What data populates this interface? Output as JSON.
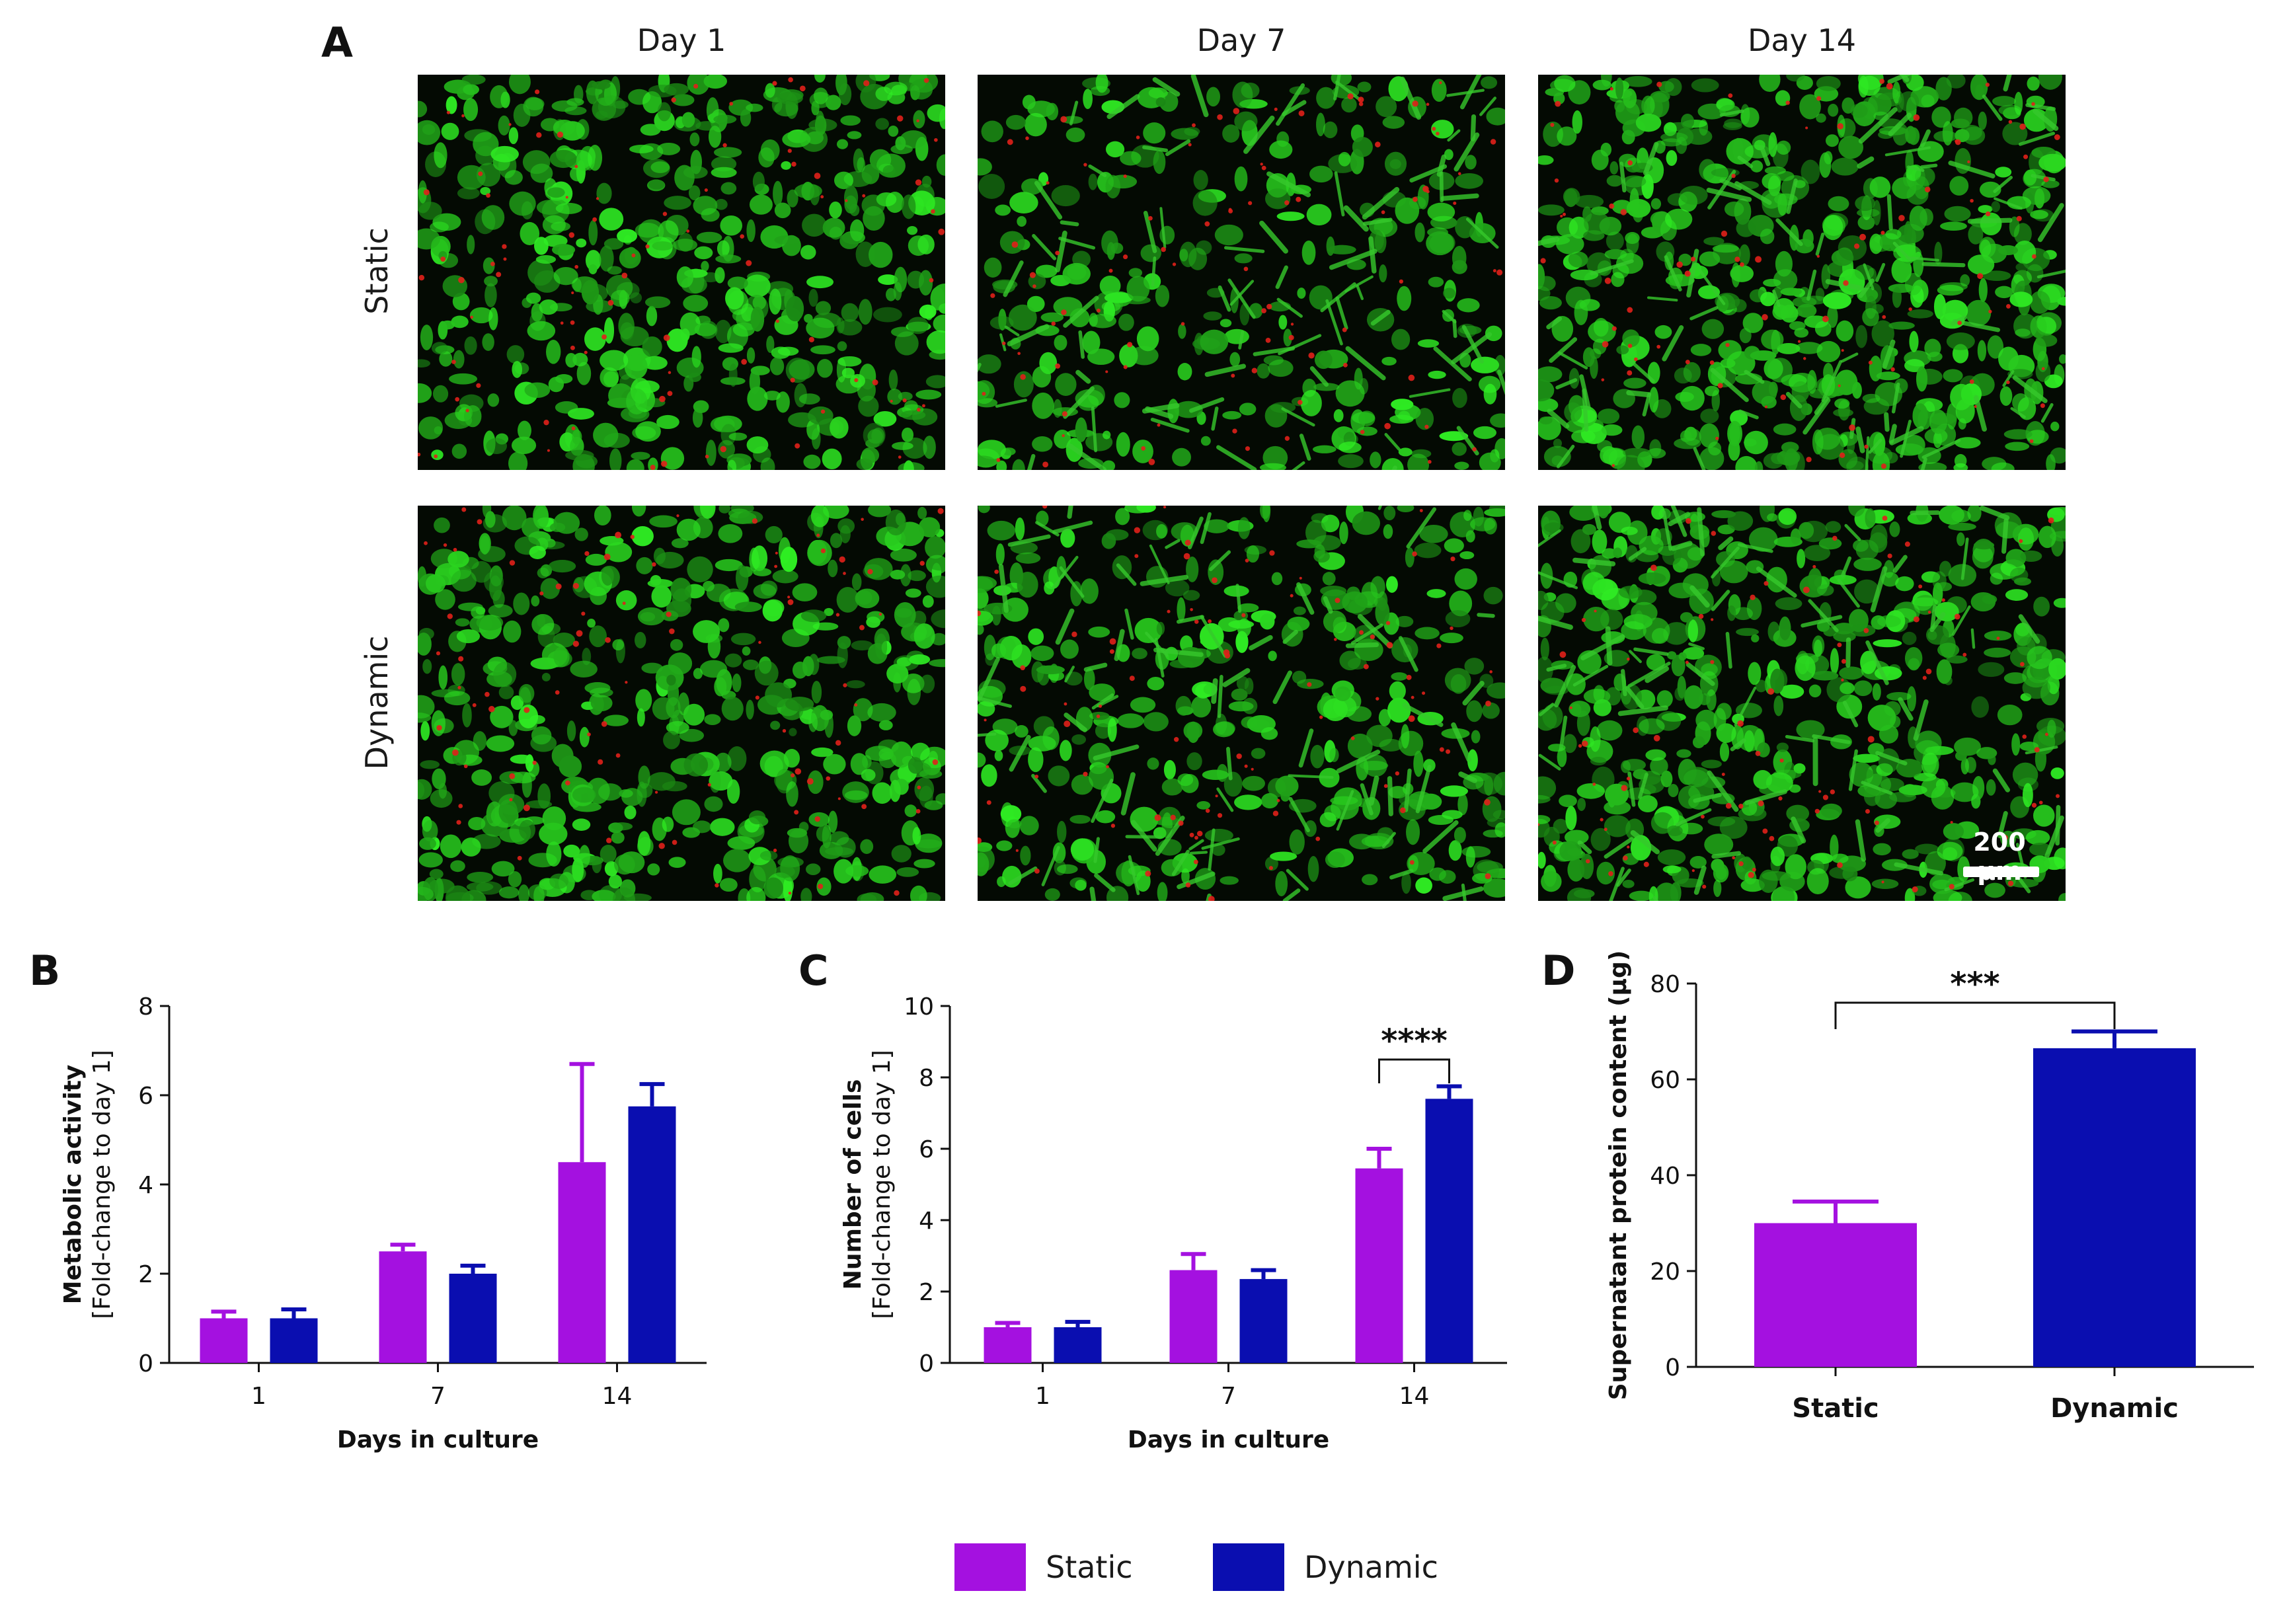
{
  "panel_a": {
    "letter": "A",
    "columns": [
      "Day 1",
      "Day 7",
      "Day 14"
    ],
    "rows": [
      "Static",
      "Dynamic"
    ],
    "scale_bar_label": "200 µm",
    "stain_colors": {
      "live": "#2fd52a",
      "dead": "#e0201a",
      "background": "#040a03"
    }
  },
  "colors": {
    "static": "#a411e0",
    "dynamic": "#0a0eb0"
  },
  "legend": {
    "static_label": "Static",
    "dynamic_label": "Dynamic"
  },
  "chart_data": [
    {
      "id": "B",
      "type": "bar",
      "letter": "B",
      "categories": [
        "1",
        "7",
        "14"
      ],
      "series": [
        {
          "name": "Static",
          "values": [
            1.0,
            2.5,
            4.5
          ],
          "errors": [
            0.15,
            0.15,
            2.2
          ]
        },
        {
          "name": "Dynamic",
          "values": [
            1.0,
            2.0,
            5.75
          ],
          "errors": [
            0.2,
            0.18,
            0.5
          ]
        }
      ],
      "xlabel": "Days in culture",
      "ylabel": "Metabolic activity",
      "ylabel2": "[Fold-change to day 1]",
      "ylim": [
        0,
        8
      ],
      "yticks": [
        0,
        2,
        4,
        6,
        8
      ],
      "significance": []
    },
    {
      "id": "C",
      "type": "bar",
      "letter": "C",
      "categories": [
        "1",
        "7",
        "14"
      ],
      "series": [
        {
          "name": "Static",
          "values": [
            1.0,
            2.6,
            5.45
          ],
          "errors": [
            0.12,
            0.45,
            0.55
          ]
        },
        {
          "name": "Dynamic",
          "values": [
            1.0,
            2.35,
            7.4
          ],
          "errors": [
            0.15,
            0.25,
            0.35
          ]
        }
      ],
      "xlabel": "Days in culture",
      "ylabel": "Number of cells",
      "ylabel2": "[Fold-change to day 1]",
      "ylim": [
        0,
        10
      ],
      "yticks": [
        0,
        2,
        4,
        6,
        8,
        10
      ],
      "significance": [
        {
          "category": "14",
          "label": "****",
          "level": 8.5
        }
      ]
    },
    {
      "id": "D",
      "type": "bar",
      "letter": "D",
      "categories": [
        "Static",
        "Dynamic"
      ],
      "series": [
        {
          "name": "Supernatant protein content",
          "values": [
            30.0,
            66.5
          ],
          "errors": [
            4.5,
            3.5
          ]
        }
      ],
      "xlabel": "",
      "ylabel": "Supernatant protein content (µg)",
      "ylabel2": "",
      "ylim": [
        0,
        80
      ],
      "yticks": [
        0,
        20,
        40,
        60,
        80
      ],
      "significance": [
        {
          "from": "Static",
          "to": "Dynamic",
          "label": "***",
          "level": 76
        }
      ]
    }
  ]
}
